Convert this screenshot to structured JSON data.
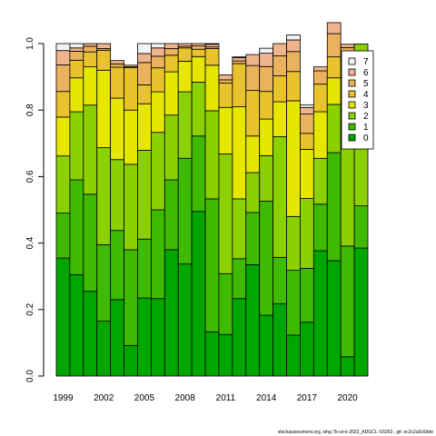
{
  "chart_data": {
    "type": "bar",
    "stacked": true,
    "x": [
      1999,
      2000,
      2001,
      2002,
      2003,
      2004,
      2005,
      2006,
      2007,
      2008,
      2009,
      2010,
      2011,
      2012,
      2013,
      2014,
      2015,
      2016,
      2017,
      2018,
      2019,
      2020,
      2021
    ],
    "xticks": [
      1999,
      2002,
      2005,
      2008,
      2011,
      2014,
      2017,
      2020
    ],
    "xtick_labels": [
      "1999",
      "2002",
      "2005",
      "2008",
      "2011",
      "2014",
      "2017",
      "2020"
    ],
    "ylim": [
      0,
      1
    ],
    "yticks": [
      0,
      0.2,
      0.4,
      0.6,
      0.8,
      1.0
    ],
    "ytick_labels": [
      "0.0",
      "0.2",
      "0.4",
      "0.6",
      "0.8",
      "1.0"
    ],
    "series": [
      {
        "name": "0",
        "color": "#00a600",
        "values": [
          0.355,
          0.305,
          0.255,
          0.165,
          0.23,
          0.092,
          0.235,
          0.233,
          0.38,
          0.337,
          0.495,
          0.133,
          0.125,
          0.233,
          0.335,
          0.183,
          0.217,
          0.123,
          0.162,
          0.377,
          0.347,
          0.058,
          0.385
        ]
      },
      {
        "name": "1",
        "color": "#3ebb00",
        "values": [
          0.135,
          0.285,
          0.292,
          0.23,
          0.208,
          0.288,
          0.177,
          0.267,
          0.21,
          0.318,
          0.227,
          0.4,
          0.183,
          0.12,
          0.157,
          0.343,
          0.14,
          0.195,
          0.162,
          0.14,
          0.325,
          0.333,
          0.127
        ]
      },
      {
        "name": "2",
        "color": "#8bd000",
        "values": [
          0.172,
          0.205,
          0.268,
          0.292,
          0.213,
          0.257,
          0.267,
          0.233,
          0.195,
          0.2,
          0.162,
          0.265,
          0.36,
          0.18,
          0.12,
          0.137,
          0.363,
          0.162,
          0.21,
          0.138,
          0.145,
          0.367,
          0.487
        ]
      },
      {
        "name": "3",
        "color": "#e6e600",
        "values": [
          0.117,
          0.102,
          0.115,
          0.233,
          0.185,
          0.163,
          0.14,
          0.122,
          0.13,
          0.092,
          0.077,
          0.137,
          0.14,
          0.277,
          0.11,
          0.11,
          0.105,
          0.348,
          0.148,
          0.14,
          0.08,
          0.14,
          0.0
        ]
      },
      {
        "name": "4",
        "color": "#e8c32e",
        "values": [
          0.077,
          0.053,
          0.045,
          0.06,
          0.093,
          0.128,
          0.057,
          0.072,
          0.05,
          0.04,
          0.022,
          0.05,
          0.073,
          0.13,
          0.137,
          0.083,
          0.078,
          0.088,
          0.048,
          0.083,
          0.063,
          0.05,
          0.0
        ]
      },
      {
        "name": "5",
        "color": "#ebb25e",
        "values": [
          0.08,
          0.027,
          0.017,
          0.005,
          0.01,
          0.002,
          0.067,
          0.035,
          0.02,
          0.005,
          0.01,
          0.005,
          0.01,
          0.008,
          0.075,
          0.075,
          0.06,
          0.06,
          0.058,
          0.04,
          0.07,
          0.04,
          0.0
        ]
      },
      {
        "name": "6",
        "color": "#edb48e",
        "values": [
          0.043,
          0.01,
          0.008,
          0.015,
          0.01,
          0.005,
          0.027,
          0.025,
          0.015,
          0.008,
          0.007,
          0.008,
          0.015,
          0.01,
          0.033,
          0.04,
          0.037,
          0.035,
          0.02,
          0.012,
          0.033,
          0.01,
          0.0
        ]
      },
      {
        "name": "7",
        "color": "#f2f2f2",
        "values": [
          0.021,
          0.013,
          0.0,
          0.0,
          0.0,
          0.0,
          0.03,
          0.013,
          0.0,
          0.0,
          0.0,
          0.002,
          0.0,
          0.002,
          0.0,
          0.015,
          0.0,
          0.015,
          0.008,
          0.0,
          0.0,
          0.0,
          0.0
        ]
      }
    ],
    "legend": {
      "position": "right",
      "order": [
        "7",
        "6",
        "5",
        "4",
        "3",
        "2",
        "1",
        "0"
      ]
    },
    "grid": false,
    "title": "",
    "xlabel": "",
    "ylabel": ""
  },
  "footer": {
    "note": "stockassessment.org, whg.7b-ce-k-2022_ADGCL r16263 , git: ec2c2a0c6dde"
  }
}
